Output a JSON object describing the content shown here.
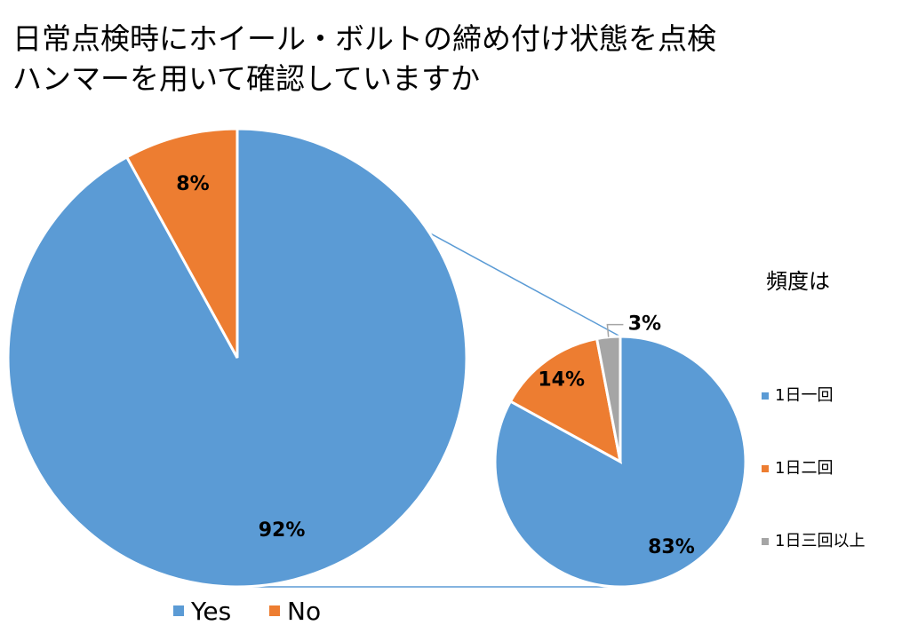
{
  "title": [
    "日常点検時にホイール・ボルトの締め付け状態を点検",
    "ハンマーを用いて確認していますか"
  ],
  "chart_data": [
    {
      "type": "pie",
      "categories": [
        "Yes",
        "No"
      ],
      "values": [
        92,
        8
      ],
      "value_labels": [
        "92%",
        "8%"
      ],
      "colors": [
        "#5b9bd5",
        "#ed7d31"
      ],
      "legend": "bottom"
    },
    {
      "type": "pie",
      "legend_title": "頻度は",
      "categories": [
        "1日一回",
        "1日二回",
        "1日三回以上"
      ],
      "values": [
        83,
        14,
        3
      ],
      "value_labels": [
        "83%",
        "14%",
        "3%"
      ],
      "colors": [
        "#5b9bd5",
        "#ed7d31",
        "#a5a5a5"
      ],
      "legend": "right"
    }
  ]
}
